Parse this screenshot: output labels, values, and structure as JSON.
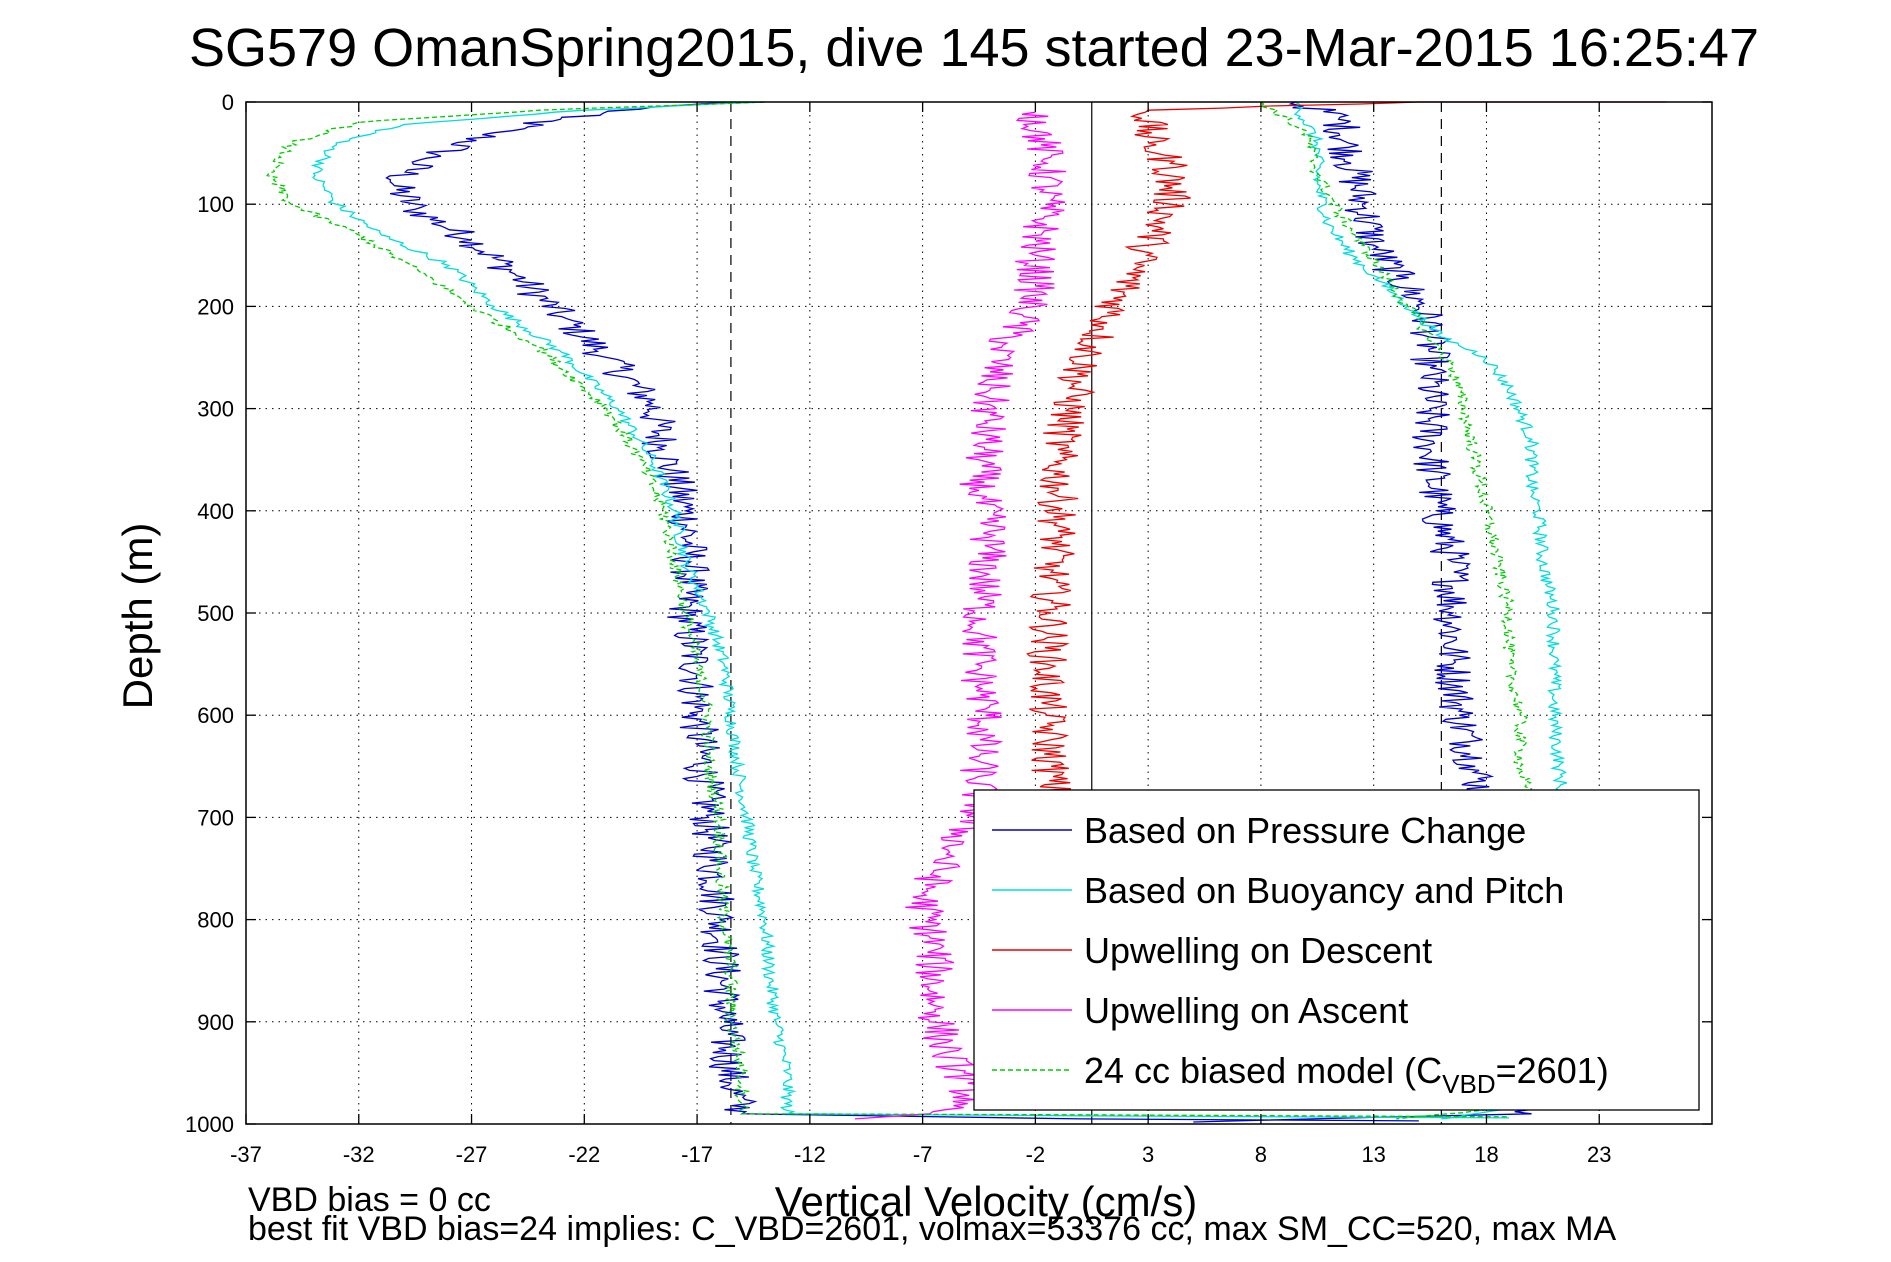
{
  "chart_data": {
    "type": "line",
    "title": "SG579 OmanSpring2015, dive 145 started 23-Mar-2015 16:25:47",
    "xlabel": "Vertical Velocity (cm/s)",
    "ylabel": "Depth (m)",
    "xlim": [
      -37,
      28
    ],
    "ylim": [
      0,
      1000
    ],
    "y_reversed": true,
    "x_ticks": [
      "-37",
      "-32",
      "-27",
      "-22",
      "-17",
      "-12",
      "-7",
      "-2",
      "3",
      "8",
      "13",
      "18",
      "23"
    ],
    "y_ticks": [
      "0",
      "100",
      "200",
      "300",
      "400",
      "500",
      "600",
      "700",
      "800",
      "900",
      "1000"
    ],
    "grid": true,
    "legend_position": "bottom-right",
    "reference_lines": [
      {
        "x": -15.5,
        "style": "dashed"
      },
      {
        "x": 0.5,
        "style": "solid"
      },
      {
        "x": 16.0,
        "style": "dashed"
      }
    ],
    "series": [
      {
        "name": "Based on Pressure Change",
        "color": "#0000cc",
        "style": "solid",
        "noise": 0.9,
        "segments": [
          [
            [
              -15.5,
              0
            ],
            [
              -19,
              5
            ],
            [
              -23,
              15
            ],
            [
              -26,
              30
            ],
            [
              -29,
              55
            ],
            [
              -30.5,
              80
            ],
            [
              -29.5,
              105
            ],
            [
              -27,
              135
            ],
            [
              -25,
              170
            ],
            [
              -23,
              210
            ],
            [
              -21,
              250
            ],
            [
              -19,
              295
            ],
            [
              -18.5,
              340
            ],
            [
              -17.5,
              400
            ],
            [
              -17.3,
              450
            ],
            [
              -17.5,
              500
            ],
            [
              -17,
              560
            ],
            [
              -17,
              600
            ],
            [
              -16.5,
              700
            ],
            [
              -16,
              800
            ],
            [
              -15.8,
              900
            ],
            [
              -15.5,
              960
            ],
            [
              -15,
              990
            ],
            [
              0,
              995
            ],
            [
              15,
              997
            ]
          ],
          [
            [
              9.5,
              0
            ],
            [
              11.5,
              15
            ],
            [
              12,
              60
            ],
            [
              12.5,
              100
            ],
            [
              13,
              140
            ],
            [
              14,
              170
            ],
            [
              15,
              195
            ],
            [
              15.5,
              220
            ],
            [
              15.5,
              260
            ],
            [
              15.5,
              300
            ],
            [
              15.5,
              340
            ],
            [
              15.8,
              400
            ],
            [
              16.5,
              450
            ],
            [
              16.5,
              500
            ],
            [
              16.5,
              550
            ],
            [
              16.8,
              600
            ],
            [
              17.5,
              650
            ],
            [
              18,
              700
            ],
            [
              18,
              750
            ],
            [
              18,
              800
            ],
            [
              18,
              860
            ],
            [
              18.5,
              900
            ],
            [
              19,
              950
            ],
            [
              20,
              990
            ],
            [
              12,
              994
            ],
            [
              5,
              998
            ]
          ]
        ]
      },
      {
        "name": "Based on Buoyancy and Pitch",
        "color": "#00dddd",
        "style": "solid",
        "noise": 0.3,
        "segments": [
          [
            [
              -14,
              0
            ],
            [
              -22,
              8
            ],
            [
              -30,
              22
            ],
            [
              -33,
              40
            ],
            [
              -34,
              70
            ],
            [
              -33,
              100
            ],
            [
              -31,
              130
            ],
            [
              -28,
              160
            ],
            [
              -26,
              200
            ],
            [
              -23,
              245
            ],
            [
              -20.5,
              300
            ],
            [
              -19,
              350
            ],
            [
              -18,
              400
            ],
            [
              -17.5,
              450
            ],
            [
              -16.5,
              500
            ],
            [
              -15.8,
              550
            ],
            [
              -15.5,
              600
            ],
            [
              -15.2,
              650
            ],
            [
              -14.8,
              700
            ],
            [
              -14.5,
              750
            ],
            [
              -14,
              800
            ],
            [
              -13.8,
              850
            ],
            [
              -13.5,
              900
            ],
            [
              -13,
              950
            ],
            [
              -13,
              990
            ],
            [
              0,
              992
            ],
            [
              19,
              994
            ]
          ],
          [
            [
              9.5,
              0
            ],
            [
              10.5,
              40
            ],
            [
              10.5,
              80
            ],
            [
              11,
              120
            ],
            [
              12,
              150
            ],
            [
              13,
              170
            ],
            [
              14.5,
              200
            ],
            [
              16,
              230
            ],
            [
              18,
              250
            ],
            [
              19,
              280
            ],
            [
              20,
              330
            ],
            [
              20,
              380
            ],
            [
              20.3,
              400
            ],
            [
              20.5,
              450
            ],
            [
              21,
              500
            ],
            [
              21,
              550
            ],
            [
              21,
              600
            ],
            [
              21.2,
              650
            ],
            [
              21.5,
              700
            ],
            [
              21.5,
              800
            ],
            [
              21.2,
              900
            ],
            [
              20.5,
              980
            ],
            [
              16,
              995
            ]
          ]
        ]
      },
      {
        "name": "Upwelling on Descent",
        "color": "#ee0000",
        "style": "solid",
        "noise": 0.9,
        "segments": [
          [
            [
              26,
              0
            ],
            [
              15,
              0
            ],
            [
              3,
              8
            ],
            [
              3,
              40
            ],
            [
              4,
              60
            ],
            [
              4,
              100
            ],
            [
              3,
              140
            ],
            [
              2,
              180
            ],
            [
              1,
              220
            ],
            [
              0,
              260
            ],
            [
              -0.5,
              300
            ],
            [
              -1,
              340
            ],
            [
              -1,
              380
            ],
            [
              -1,
              420
            ],
            [
              -1.3,
              460
            ],
            [
              -1.3,
              500
            ],
            [
              -1.5,
              550
            ],
            [
              -1.5,
              600
            ],
            [
              -1.3,
              650
            ],
            [
              -1.2,
              700
            ],
            [
              -1,
              760
            ]
          ]
        ]
      },
      {
        "name": "Upwelling on Ascent",
        "color": "#ff00ff",
        "style": "solid",
        "noise": 0.9,
        "segments": [
          [
            [
              -2,
              10
            ],
            [
              -1.5,
              60
            ],
            [
              -1.5,
              100
            ],
            [
              -2,
              150
            ],
            [
              -2,
              180
            ],
            [
              -2.5,
              210
            ],
            [
              -3.5,
              240
            ],
            [
              -4,
              280
            ],
            [
              -4.2,
              330
            ],
            [
              -4.5,
              380
            ],
            [
              -4,
              420
            ],
            [
              -4.3,
              470
            ],
            [
              -4.5,
              520
            ],
            [
              -4.5,
              560
            ],
            [
              -4.2,
              600
            ],
            [
              -4.5,
              640
            ],
            [
              -4.5,
              690
            ],
            [
              -6,
              740
            ],
            [
              -7,
              780
            ],
            [
              -6.5,
              830
            ],
            [
              -6.5,
              880
            ],
            [
              -6,
              930
            ],
            [
              -5,
              960
            ],
            [
              -5,
              980
            ],
            [
              -8,
              992
            ],
            [
              -10,
              995
            ]
          ]
        ]
      },
      {
        "name": "24 cc biased model (C",
        "name_sub": "VBD",
        "name_tail": "=2601)",
        "color": "#00cc00",
        "style": "dashed",
        "noise": 0.3,
        "segments": [
          [
            [
              -14,
              0
            ],
            [
              -24,
              8
            ],
            [
              -32,
              20
            ],
            [
              -35,
              40
            ],
            [
              -36,
              70
            ],
            [
              -35,
              100
            ],
            [
              -32,
              130
            ],
            [
              -29,
              170
            ],
            [
              -27,
              200
            ],
            [
              -24,
              240
            ],
            [
              -21,
              300
            ],
            [
              -19.5,
              350
            ],
            [
              -18.5,
              400
            ],
            [
              -18,
              450
            ],
            [
              -17.5,
              500
            ],
            [
              -17,
              550
            ],
            [
              -16.5,
              600
            ],
            [
              -16.5,
              650
            ],
            [
              -16,
              700
            ],
            [
              -16,
              750
            ],
            [
              -15.8,
              800
            ],
            [
              -15.5,
              850
            ],
            [
              -15.5,
              900
            ],
            [
              -15,
              950
            ],
            [
              -15,
              990
            ],
            [
              0,
              991
            ],
            [
              19,
              993
            ]
          ],
          [
            [
              8,
              0
            ],
            [
              10,
              30
            ],
            [
              10.5,
              70
            ],
            [
              11.5,
              110
            ],
            [
              12.5,
              140
            ],
            [
              13.5,
              170
            ],
            [
              14.5,
              200
            ],
            [
              15.5,
              230
            ],
            [
              16.5,
              260
            ],
            [
              17,
              300
            ],
            [
              17.5,
              350
            ],
            [
              18,
              400
            ],
            [
              18.5,
              450
            ],
            [
              19,
              500
            ],
            [
              19,
              550
            ],
            [
              19.5,
              600
            ],
            [
              19.5,
              650
            ],
            [
              20,
              700
            ],
            [
              19.5,
              800
            ],
            [
              19,
              900
            ],
            [
              18.5,
              985
            ],
            [
              14,
              995
            ]
          ]
        ]
      }
    ]
  },
  "notes": {
    "vbd_bias": "VBD bias = 0 cc",
    "best_fit": "best fit VBD bias=24 implies: C_VBD=2601, volmax=53376 cc, max SM_CC=520, max MA"
  }
}
